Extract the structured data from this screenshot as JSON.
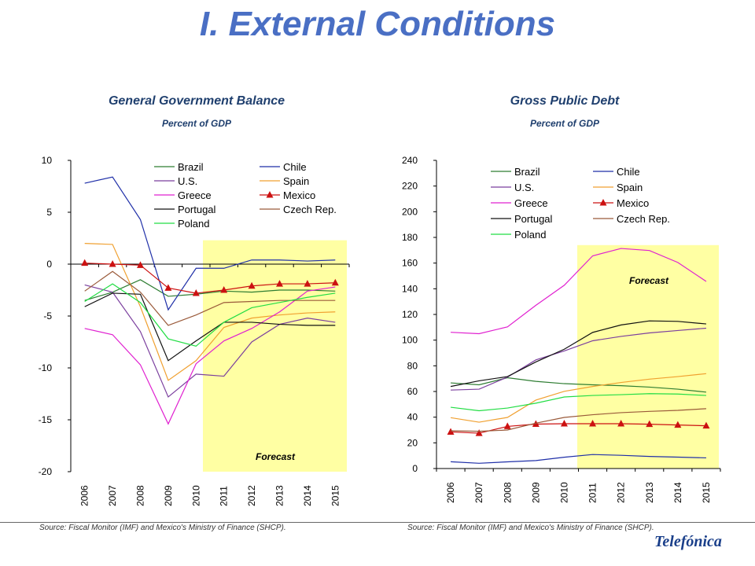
{
  "page": {
    "title": "I. External Conditions",
    "logo_text": "Telefónica"
  },
  "source_note": "Source: Fiscal Monitor (IMF) and Mexico's Ministry of Finance (SHCP).",
  "chart_data": [
    {
      "type": "line",
      "title": "General Government Balance",
      "subtitle": "Percent of GDP",
      "x": [
        "2006",
        "2007",
        "2008",
        "2009",
        "2010",
        "2011",
        "2012",
        "2013",
        "2014",
        "2015"
      ],
      "ylim": [
        -20,
        10
      ],
      "yticks": [
        10,
        5,
        0,
        -5,
        -10,
        -15,
        -20
      ],
      "forecast_label": "Forecast",
      "forecast_from": "2011",
      "series": [
        {
          "name": "Brazil",
          "color": "#2e7d32",
          "values": [
            -3.5,
            -2.7,
            -1.5,
            -3.1,
            -2.9,
            -2.6,
            -2.7,
            -2.5,
            -2.5,
            -2.6
          ]
        },
        {
          "name": "Chile",
          "color": "#1f2fa8",
          "values": [
            7.8,
            8.4,
            4.3,
            -4.4,
            -0.4,
            -0.4,
            0.4,
            0.4,
            0.3,
            0.4
          ]
        },
        {
          "name": "U.S.",
          "color": "#7b3f9e",
          "values": [
            -2.0,
            -2.7,
            -6.5,
            -12.8,
            -10.6,
            -10.8,
            -7.5,
            -5.8,
            -5.2,
            -5.6
          ]
        },
        {
          "name": "Spain",
          "color": "#f0a030",
          "values": [
            2.0,
            1.9,
            -4.1,
            -11.2,
            -9.3,
            -6.1,
            -5.2,
            -4.9,
            -4.7,
            -4.6
          ]
        },
        {
          "name": "Greece",
          "color": "#e020d0",
          "values": [
            -6.2,
            -6.8,
            -9.7,
            -15.4,
            -9.6,
            -7.4,
            -6.2,
            -4.6,
            -2.6,
            -2.2
          ]
        },
        {
          "name": "Mexico",
          "color": "#cc1111",
          "marker": "triangle",
          "values": [
            0.1,
            0.0,
            -0.1,
            -2.3,
            -2.8,
            -2.5,
            -2.1,
            -1.9,
            -1.9,
            -1.8
          ]
        },
        {
          "name": "Portugal",
          "color": "#111111",
          "values": [
            -4.1,
            -2.8,
            -2.9,
            -9.3,
            -7.4,
            -5.6,
            -5.6,
            -5.8,
            -5.9,
            -5.9
          ]
        },
        {
          "name": "Czech Rep.",
          "color": "#9a5a3a",
          "values": [
            -2.6,
            -0.7,
            -2.7,
            -5.9,
            -4.9,
            -3.7,
            -3.6,
            -3.5,
            -3.5,
            -3.5
          ]
        },
        {
          "name": "Poland",
          "color": "#22dd44",
          "values": [
            -3.6,
            -1.9,
            -3.7,
            -7.2,
            -7.9,
            -5.6,
            -4.2,
            -3.7,
            -3.2,
            -2.8
          ]
        }
      ]
    },
    {
      "type": "line",
      "title": "Gross Public Debt",
      "subtitle": "Percent of GDP",
      "x": [
        "2006",
        "2007",
        "2008",
        "2009",
        "2010",
        "2011",
        "2012",
        "2013",
        "2014",
        "2015"
      ],
      "ylim": [
        0,
        240
      ],
      "yticks": [
        240,
        220,
        200,
        180,
        160,
        140,
        120,
        100,
        80,
        60,
        40,
        20,
        0
      ],
      "forecast_label": "Forecast",
      "forecast_from": "2011",
      "series": [
        {
          "name": "Brazil",
          "color": "#2e7d32",
          "values": [
            66.7,
            65.2,
            70.7,
            67.9,
            66.1,
            65.2,
            64.5,
            63.4,
            61.8,
            59.5
          ]
        },
        {
          "name": "Chile",
          "color": "#1f2fa8",
          "values": [
            5.3,
            4.1,
            5.2,
            6.2,
            8.8,
            10.9,
            10.3,
            9.4,
            8.9,
            8.3
          ]
        },
        {
          "name": "U.S.",
          "color": "#7b3f9e",
          "values": [
            61.1,
            61.8,
            71.2,
            84.6,
            91.6,
            99.5,
            102.9,
            105.6,
            107.5,
            109.3
          ]
        },
        {
          "name": "Spain",
          "color": "#f0a030",
          "values": [
            39.6,
            36.1,
            39.8,
            53.3,
            60.1,
            63.9,
            67.0,
            69.6,
            71.6,
            73.9
          ]
        },
        {
          "name": "Greece",
          "color": "#e020d0",
          "values": [
            106.1,
            105.0,
            110.3,
            127.1,
            142.7,
            165.6,
            171.4,
            169.8,
            160.5,
            145.7
          ]
        },
        {
          "name": "Mexico",
          "color": "#cc1111",
          "marker": "triangle",
          "values": [
            28.5,
            27.5,
            32.8,
            34.6,
            34.9,
            34.9,
            34.9,
            34.5,
            33.9,
            33.3
          ]
        },
        {
          "name": "Portugal",
          "color": "#111111",
          "values": [
            63.9,
            68.3,
            71.6,
            83.0,
            92.9,
            106.0,
            111.8,
            115.0,
            114.6,
            112.6
          ]
        },
        {
          "name": "Czech Rep.",
          "color": "#9a5a3a",
          "values": [
            29.4,
            29.0,
            30.0,
            35.3,
            39.8,
            41.9,
            43.5,
            44.5,
            45.3,
            46.6
          ]
        },
        {
          "name": "Poland",
          "color": "#22dd44",
          "values": [
            47.7,
            45.0,
            47.1,
            50.9,
            55.7,
            56.9,
            57.5,
            58.3,
            58.0,
            56.9
          ]
        }
      ]
    }
  ]
}
